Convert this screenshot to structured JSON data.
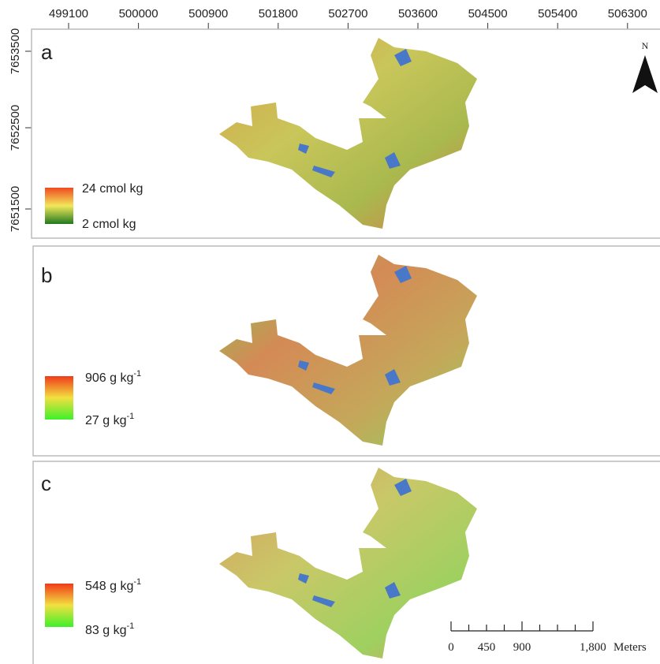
{
  "map": {
    "x_ticks": [
      "499100",
      "500000",
      "500900",
      "501800",
      "502700",
      "503600",
      "504500",
      "505400",
      "506300"
    ],
    "y_ticks": [
      "7653500",
      "7652500",
      "7651500"
    ],
    "north": "N",
    "panels": [
      {
        "label": "a",
        "legend_max": {
          "text": "24 cmol kg"
        },
        "legend_min": {
          "text": "2 cmol kg"
        }
      },
      {
        "label": "b",
        "legend_max": {
          "text": "906 g kg",
          "sup": "-1"
        },
        "legend_min": {
          "text": "27 g kg",
          "sup": "-1"
        }
      },
      {
        "label": "c",
        "legend_max": {
          "text": "548 g kg",
          "sup": "-1"
        },
        "legend_min": {
          "text": "83 g kg",
          "sup": "-1"
        }
      }
    ],
    "scale_bar": {
      "labels": [
        "0",
        "450",
        "900",
        "1,800"
      ],
      "unit": "Meters"
    }
  }
}
